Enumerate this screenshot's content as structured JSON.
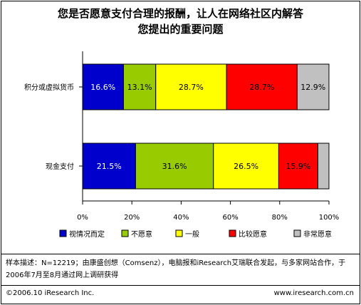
{
  "title": {
    "line1": "您是否愿意支付合理的报酬，让人在网络社区内解答",
    "line2": "您提出的重要问题"
  },
  "chart_data": {
    "type": "bar",
    "orientation": "horizontal",
    "stacked": true,
    "percent": true,
    "categories": [
      "积分或虚拟货币",
      "现金支付"
    ],
    "series": [
      {
        "name": "视情况而定",
        "color": "#0000cc",
        "label_color": "#ffffff",
        "values": [
          16.6,
          21.5
        ],
        "labels": [
          "16.6%",
          "21.5%"
        ]
      },
      {
        "name": "不愿意",
        "color": "#99cc00",
        "label_color": "#000000",
        "values": [
          13.1,
          31.6
        ],
        "labels": [
          "13.1%",
          "31.6%"
        ]
      },
      {
        "name": "一般",
        "color": "#ffff00",
        "label_color": "#000000",
        "values": [
          28.7,
          26.5
        ],
        "labels": [
          "28.7%",
          "26.5%"
        ]
      },
      {
        "name": "比较愿意",
        "color": "#ff0000",
        "label_color": "#000000",
        "values": [
          28.7,
          15.9
        ],
        "labels": [
          "28.7%",
          "15.9%"
        ]
      },
      {
        "name": "非常愿意",
        "color": "#c0c0c0",
        "label_color": "#000000",
        "values": [
          12.9,
          4.5
        ],
        "labels": [
          "12.9%",
          ""
        ]
      }
    ],
    "xlim": [
      0,
      100
    ],
    "x_ticks": [
      "0%",
      "20%",
      "40%",
      "60%",
      "80%",
      "100%"
    ],
    "grid": false,
    "legend_position": "bottom"
  },
  "note": "样本描述：N=12219；由康盛创想（Comsenz），电脑报和iResearch艾瑞联合发起，与多家网站合作，于2006年7月至8月通过网上调研获得",
  "footer": {
    "copyright": "©2006.10 iResearch Inc.",
    "website": "www.iresearch.com.cn"
  }
}
